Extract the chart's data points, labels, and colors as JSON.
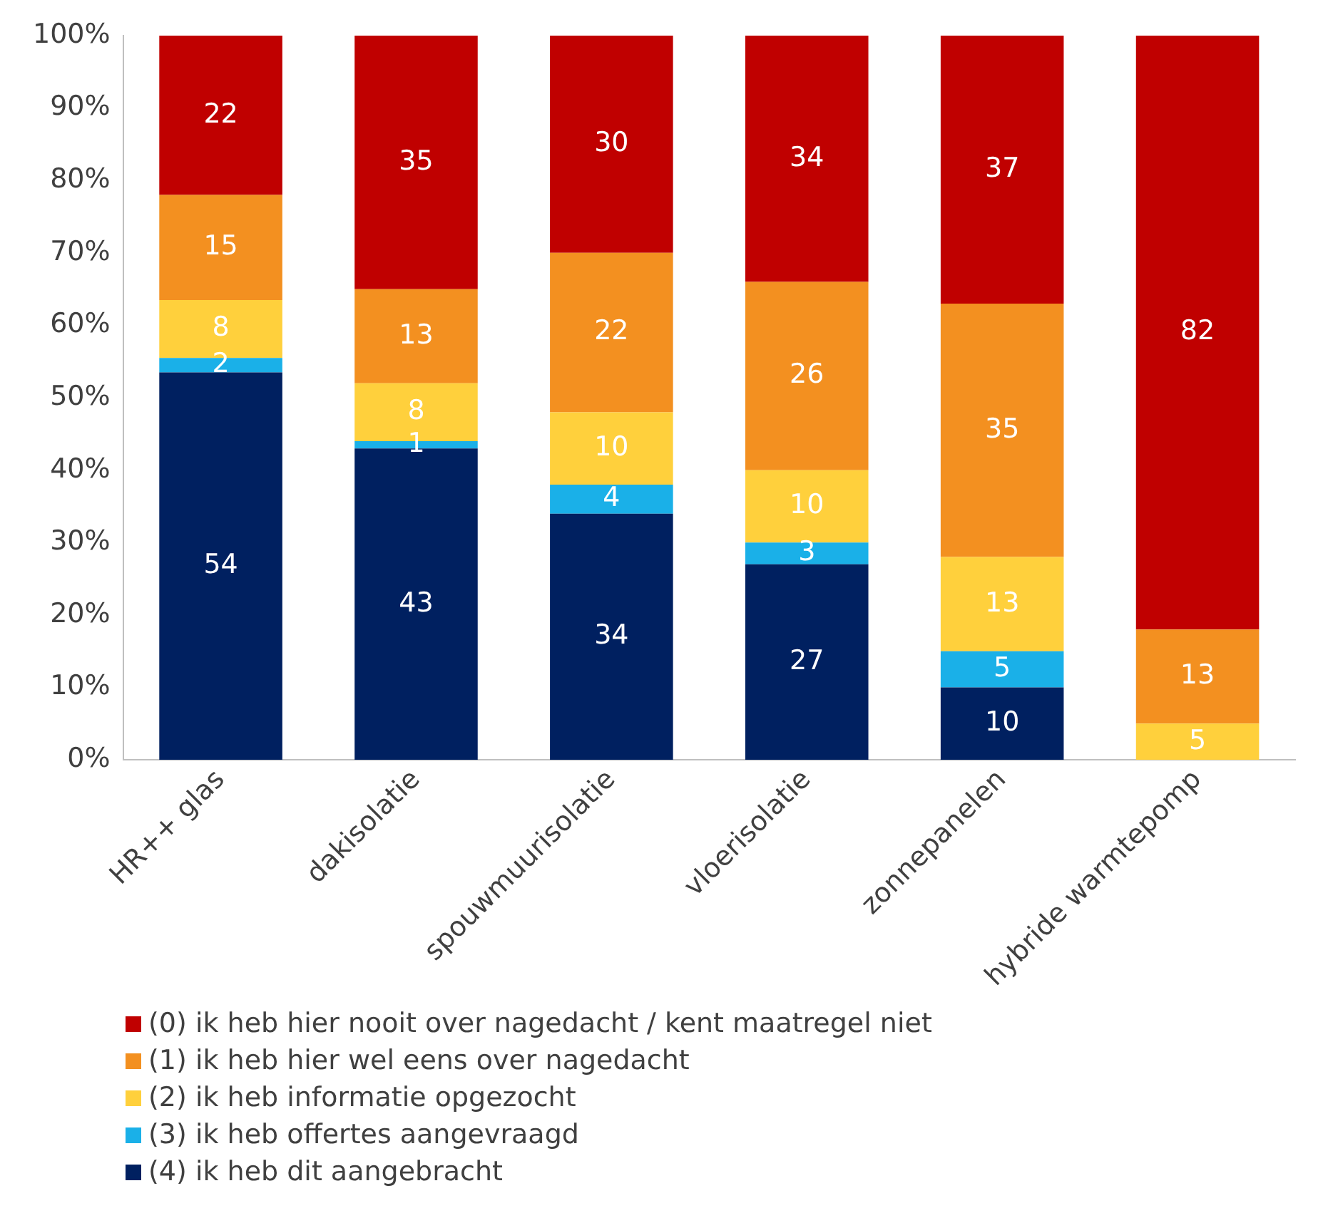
{
  "chart_data": {
    "type": "bar",
    "stacked": true,
    "categories": [
      "HR++ glas",
      "dakisolatie",
      "spouwmuurisolatie",
      "vloerisolatie",
      "zonnepanelen",
      "hybride warmtepomp"
    ],
    "ylim": [
      0,
      100
    ],
    "yticks": [
      {
        "value": 0,
        "label": "0%"
      },
      {
        "value": 10,
        "label": "10%"
      },
      {
        "value": 20,
        "label": "20%"
      },
      {
        "value": 30,
        "label": "30%"
      },
      {
        "value": 40,
        "label": "40%"
      },
      {
        "value": 50,
        "label": "50%"
      },
      {
        "value": 60,
        "label": "60%"
      },
      {
        "value": 70,
        "label": "70%"
      },
      {
        "value": 80,
        "label": "80%"
      },
      {
        "value": 90,
        "label": "90%"
      },
      {
        "value": 100,
        "label": "100%"
      }
    ],
    "grid": false,
    "legend": "bottom",
    "series": [
      {
        "name": "(4) ik heb dit aangebracht",
        "color": "#002060",
        "values": [
          53.5,
          43,
          34,
          27,
          10,
          0
        ],
        "value_labels": [
          "54",
          "43",
          "34",
          "27",
          "10",
          null
        ]
      },
      {
        "name": "(3) ik heb offertes aangevraagd",
        "color": "#1ab0e8",
        "values": [
          2,
          1,
          4,
          3,
          5,
          0
        ],
        "value_labels": [
          "2",
          "1",
          "4",
          "3",
          "5",
          null
        ]
      },
      {
        "name": "(2) ik heb informatie opgezocht",
        "color": "#ffd03c",
        "values": [
          8,
          8,
          10,
          10,
          13,
          5
        ],
        "value_labels": [
          "8",
          "8",
          "10",
          "10",
          "13",
          "5"
        ]
      },
      {
        "name": "(1) ik heb hier wel eens over nagedacht",
        "color": "#f39020",
        "values": [
          14.5,
          13,
          22,
          26,
          35,
          13
        ],
        "value_labels": [
          "15",
          "13",
          "22",
          "26",
          "35",
          "13"
        ]
      },
      {
        "name": "(0) ik heb hier nooit over nagedacht / kent maatregel niet",
        "color": "#c00000",
        "values": [
          22,
          35,
          30,
          34,
          37,
          82
        ],
        "value_labels": [
          "22",
          "35",
          "30",
          "34",
          "37",
          "82"
        ]
      }
    ]
  }
}
